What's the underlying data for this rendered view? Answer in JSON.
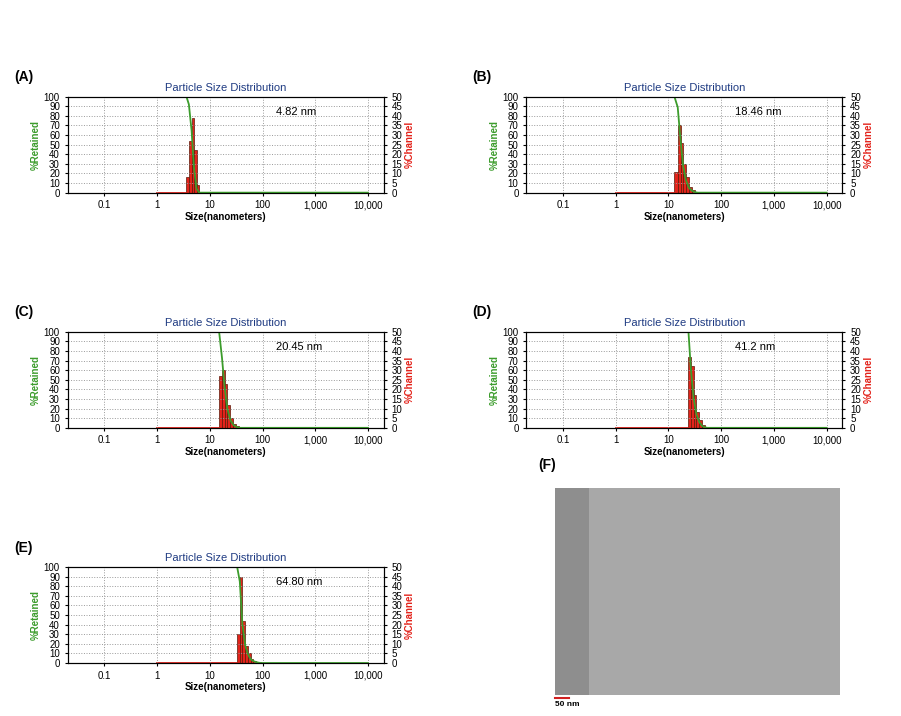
{
  "chart_data": [
    {
      "type": "bar",
      "label": "(A)",
      "title": "Particle Size Distribution",
      "annotation": "4.82 nm",
      "x_label": "Size(nanometers)",
      "y_label": "%Retained",
      "y2_label": "%Channel",
      "log": "x",
      "grid": true,
      "xlim": [
        0.02,
        20000
      ],
      "xticks": [
        0.1,
        1,
        10,
        100,
        {
          "value": 1000,
          "label": "1,000"
        },
        {
          "value": 10000,
          "label": "10,000"
        }
      ],
      "ylim": [
        0,
        100
      ],
      "yticks": [
        0,
        10,
        20,
        30,
        40,
        50,
        60,
        70,
        80,
        90,
        100
      ],
      "y2lim": [
        0,
        50
      ],
      "y2ticks": [
        0,
        5,
        10,
        15,
        20,
        25,
        30,
        35,
        40,
        45,
        50
      ],
      "series": [
        {
          "type": "line",
          "color": "#3c9c2c",
          "x": [
            1,
            3.6,
            4.0,
            4.5,
            5.0,
            5.6,
            6.3,
            10000
          ],
          "values": [
            100,
            100,
            92,
            65,
            26,
            4,
            0,
            0
          ]
        },
        {
          "type": "bar",
          "axis": "y2",
          "color": "#e3231b",
          "bins": [
            3.6,
            4.0,
            4.5,
            5.0,
            5.6,
            6.3
          ],
          "values": [
            8,
            27,
            39,
            22,
            4
          ]
        }
      ]
    },
    {
      "type": "bar",
      "label": "(B)",
      "title": "Particle Size Distribution",
      "annotation": "18.46 nm",
      "x_label": "Size(nanometers)",
      "y_label": "%Retained",
      "y2_label": "%Channel",
      "log": "x",
      "grid": true,
      "xlim": [
        0.02,
        20000
      ],
      "xticks": [
        0.1,
        1,
        10,
        100,
        {
          "value": 1000,
          "label": "1,000"
        },
        {
          "value": 10000,
          "label": "10,000"
        }
      ],
      "ylim": [
        0,
        100
      ],
      "yticks": [
        0,
        10,
        20,
        30,
        40,
        50,
        60,
        70,
        80,
        90,
        100
      ],
      "y2lim": [
        0,
        50
      ],
      "y2ticks": [
        0,
        5,
        10,
        15,
        20,
        25,
        30,
        35,
        40,
        45,
        50
      ],
      "series": [
        {
          "type": "line",
          "color": "#3c9c2c",
          "x": [
            1,
            13,
            15,
            17,
            19,
            21.5,
            24.5,
            28,
            32,
            36,
            10000
          ],
          "values": [
            100,
            100,
            89,
            54,
            28,
            13,
            5,
            2,
            0.5,
            0,
            0
          ]
        },
        {
          "type": "bar",
          "axis": "y2",
          "color": "#e3231b",
          "bins": [
            13,
            15,
            17,
            19,
            21.5,
            24.5,
            28,
            32,
            36
          ],
          "values": [
            11,
            35,
            26,
            15,
            8,
            3,
            1.5,
            0.5
          ]
        }
      ]
    },
    {
      "type": "bar",
      "label": "(C)",
      "title": "Particle Size Distribution",
      "annotation": "20.45 nm",
      "x_label": "Size(nanometers)",
      "y_label": "%Retained",
      "y2_label": "%Channel",
      "log": "x",
      "grid": true,
      "xlim": [
        0.02,
        20000
      ],
      "xticks": [
        0.1,
        1,
        10,
        100,
        {
          "value": 1000,
          "label": "1,000"
        },
        {
          "value": 10000,
          "label": "10,000"
        }
      ],
      "ylim": [
        0,
        100
      ],
      "yticks": [
        0,
        10,
        20,
        30,
        40,
        50,
        60,
        70,
        80,
        90,
        100
      ],
      "y2lim": [
        0,
        50
      ],
      "y2ticks": [
        0,
        5,
        10,
        15,
        20,
        25,
        30,
        35,
        40,
        45,
        50
      ],
      "series": [
        {
          "type": "line",
          "color": "#3c9c2c",
          "x": [
            1,
            15,
            17,
            19,
            21.5,
            24.5,
            28,
            32,
            36,
            10000
          ],
          "values": [
            100,
            100,
            73,
            43,
            20,
            8,
            3,
            1,
            0,
            0
          ]
        },
        {
          "type": "bar",
          "axis": "y2",
          "color": "#e3231b",
          "bins": [
            15,
            17,
            19,
            21.5,
            24.5,
            28,
            32,
            36
          ],
          "values": [
            27,
            30,
            23,
            12,
            5,
            2,
            1
          ]
        }
      ]
    },
    {
      "type": "bar",
      "label": "(D)",
      "title": "Particle Size Distribution",
      "annotation": "41.2 nm",
      "x_label": "Size(nanometers)",
      "y_label": "%Retained",
      "y2_label": "%Channel",
      "log": "x",
      "grid": true,
      "xlim": [
        0.02,
        20000
      ],
      "xticks": [
        0.1,
        1,
        10,
        100,
        {
          "value": 1000,
          "label": "1,000"
        },
        {
          "value": 10000,
          "label": "10,000"
        }
      ],
      "ylim": [
        0,
        100
      ],
      "yticks": [
        0,
        10,
        20,
        30,
        40,
        50,
        60,
        70,
        80,
        90,
        100
      ],
      "y2lim": [
        0,
        50
      ],
      "y2ticks": [
        0,
        5,
        10,
        15,
        20,
        25,
        30,
        35,
        40,
        45,
        50
      ],
      "series": [
        {
          "type": "line",
          "color": "#3c9c2c",
          "x": [
            1,
            24,
            26.5,
            30,
            34,
            38.5,
            43.5,
            49,
            55,
            10000
          ],
          "values": [
            100,
            100,
            63,
            31,
            14,
            6,
            2,
            0.5,
            0,
            0
          ]
        },
        {
          "type": "bar",
          "axis": "y2",
          "color": "#e3231b",
          "bins": [
            24,
            26.5,
            30,
            34,
            38.5,
            43.5,
            49,
            55
          ],
          "values": [
            37,
            32,
            17,
            8,
            4,
            1.5,
            0.5
          ]
        }
      ]
    },
    {
      "type": "bar",
      "label": "(E)",
      "title": "Particle Size Distribution",
      "annotation": "64.80 nm",
      "x_label": "Size(nanometers)",
      "y_label": "%Retained",
      "y2_label": "%Channel",
      "log": "x",
      "grid": true,
      "xlim": [
        0.02,
        20000
      ],
      "xticks": [
        0.1,
        1,
        10,
        100,
        {
          "value": 1000,
          "label": "1,000"
        },
        {
          "value": 10000,
          "label": "10,000"
        }
      ],
      "ylim": [
        0,
        100
      ],
      "yticks": [
        0,
        10,
        20,
        30,
        40,
        50,
        60,
        70,
        80,
        90,
        100
      ],
      "y2lim": [
        0,
        50
      ],
      "y2ticks": [
        0,
        5,
        10,
        15,
        20,
        25,
        30,
        35,
        40,
        45,
        50
      ],
      "series": [
        {
          "type": "line",
          "color": "#3c9c2c",
          "x": [
            1,
            33,
            37,
            41.5,
            47,
            53,
            59.5,
            67,
            75.5,
            85,
            95,
            10000
          ],
          "values": [
            100,
            100,
            85,
            40,
            18,
            9,
            4,
            2,
            1,
            0.3,
            0,
            0
          ]
        },
        {
          "type": "bar",
          "axis": "y2",
          "color": "#e3231b",
          "bins": [
            33,
            37,
            41.5,
            47,
            53,
            59.5,
            67,
            75.5,
            85,
            95
          ],
          "values": [
            15,
            45,
            22,
            9,
            5,
            2,
            1,
            0.7,
            0.3
          ]
        }
      ]
    }
  ],
  "image": {
    "label": "(F)",
    "scale_bar": "50 nm"
  }
}
